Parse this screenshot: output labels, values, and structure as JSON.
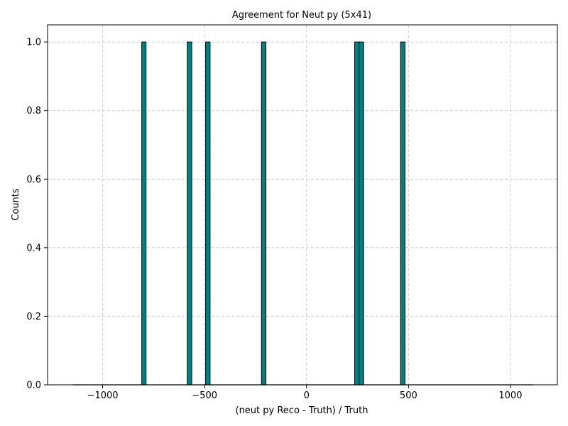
{
  "chart_data": {
    "type": "bar",
    "title": "Agreement for Neut py (5x41)",
    "xlabel": "(neut py Reco - Truth) / Truth",
    "ylabel": "Counts",
    "xlim": [
      -1270,
      1230
    ],
    "ylim": [
      0.0,
      1.05
    ],
    "x_ticks": [
      -1000,
      -500,
      0,
      500,
      1000
    ],
    "x_tick_labels": [
      "−1000",
      "−500",
      "0",
      "500",
      "1000"
    ],
    "y_ticks": [
      0.0,
      0.2,
      0.4,
      0.6,
      0.8,
      1.0
    ],
    "y_tick_labels": [
      "0.0",
      "0.2",
      "0.4",
      "0.6",
      "0.8",
      "1.0"
    ],
    "grid": true,
    "histogram_range": [
      -1145,
      1110
    ],
    "bins": [
      {
        "x0": -808,
        "x1": -787,
        "value": 1
      },
      {
        "x0": -585,
        "x1": -563,
        "value": 1
      },
      {
        "x0": -495,
        "x1": -473,
        "value": 1
      },
      {
        "x0": -221,
        "x1": -199,
        "value": 1
      },
      {
        "x0": 236,
        "x1": 258,
        "value": 1
      },
      {
        "x0": 258,
        "x1": 280,
        "value": 1
      },
      {
        "x0": 461,
        "x1": 483,
        "value": 1
      }
    ],
    "colors": {
      "bar_fill": "#008080",
      "bar_edge": "#000000",
      "grid": "#cccccc"
    }
  }
}
